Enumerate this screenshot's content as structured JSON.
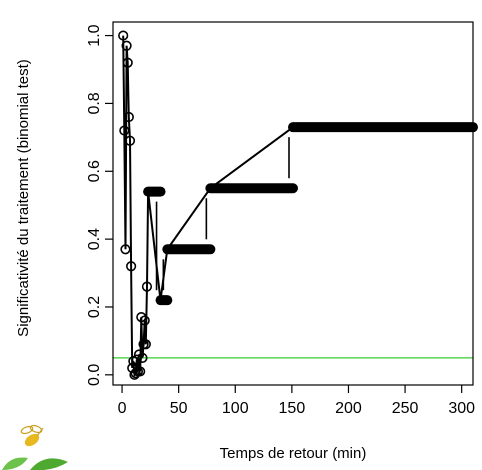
{
  "chart_data": {
    "type": "scatter",
    "title": "",
    "xlabel": "Temps de retour (min)",
    "ylabel": "Significativité du traitement (binomial test)",
    "xlim": [
      -8,
      310
    ],
    "ylim": [
      -0.03,
      1.04
    ],
    "xticks": [
      0,
      50,
      100,
      150,
      200,
      250,
      300
    ],
    "yticks": [
      0.0,
      0.2,
      0.4,
      0.6,
      0.8,
      1.0
    ],
    "xtick_labels": [
      "0",
      "50",
      "100",
      "150",
      "200",
      "250",
      "300"
    ],
    "ytick_labels": [
      "0.0",
      "0.2",
      "0.4",
      "0.6",
      "0.8",
      "1.0"
    ],
    "threshold": {
      "y": 0.05,
      "color": "#33cc33"
    },
    "grid": false,
    "points": [
      {
        "x": 1,
        "y": 1.0
      },
      {
        "x": 2,
        "y": 0.72
      },
      {
        "x": 3,
        "y": 0.37
      },
      {
        "x": 4,
        "y": 0.97
      },
      {
        "x": 5,
        "y": 0.92
      },
      {
        "x": 6,
        "y": 0.76
      },
      {
        "x": 7,
        "y": 0.69
      },
      {
        "x": 8,
        "y": 0.32
      },
      {
        "x": 9,
        "y": 0.02
      },
      {
        "x": 10,
        "y": 0.04
      },
      {
        "x": 11,
        "y": 0.0
      },
      {
        "x": 12,
        "y": 0.005
      },
      {
        "x": 13,
        "y": 0.045
      },
      {
        "x": 14,
        "y": 0.01
      },
      {
        "x": 15,
        "y": 0.06
      },
      {
        "x": 16,
        "y": 0.01
      },
      {
        "x": 17,
        "y": 0.17
      },
      {
        "x": 18,
        "y": 0.05
      },
      {
        "x": 19,
        "y": 0.09
      },
      {
        "x": 20,
        "y": 0.16
      },
      {
        "x": 21,
        "y": 0.09
      },
      {
        "x": 22,
        "y": 0.26
      }
    ],
    "steps": [
      {
        "x_start": 23,
        "x_end": 34,
        "y": 0.54
      },
      {
        "x_start": 34,
        "x_end": 40,
        "y": 0.22
      },
      {
        "x_start": 40,
        "x_end": 78,
        "y": 0.37
      },
      {
        "x_start": 78,
        "x_end": 151,
        "y": 0.55
      },
      {
        "x_start": 151,
        "x_end": 310,
        "y": 0.73
      }
    ]
  }
}
